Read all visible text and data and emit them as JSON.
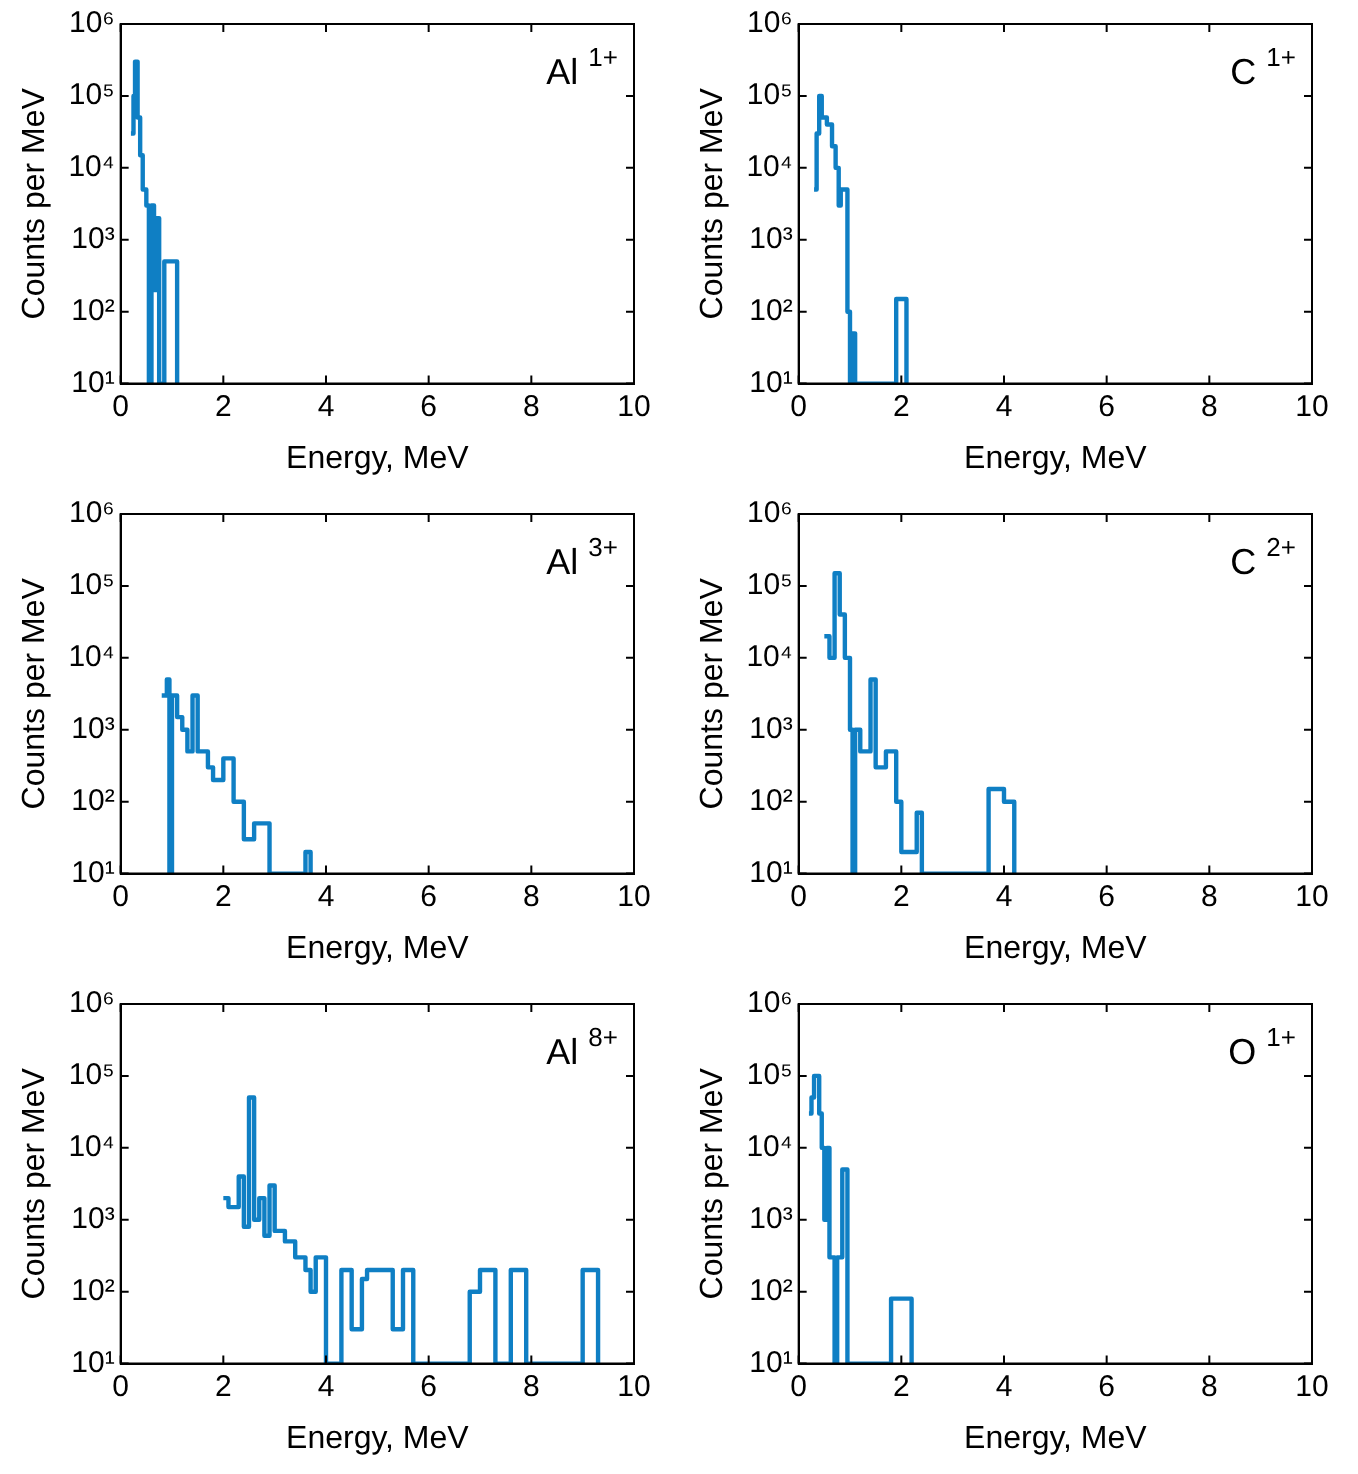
{
  "chart_data": [
    {
      "type": "step",
      "annotations": [
        "Al $^{1+}$"
      ],
      "xlabel": "Energy, MeV",
      "ylabel": "Counts per MeV",
      "log": "y",
      "grid": false,
      "legend": false,
      "xlim": [
        0,
        10
      ],
      "ylim": [
        10,
        1000000
      ],
      "xticks": [
        0,
        2,
        4,
        6,
        8,
        10
      ],
      "yticks": [
        {
          "value": 10,
          "label": "10¹"
        },
        {
          "value": 100,
          "label": "10²"
        },
        {
          "value": 1000,
          "label": "10³"
        },
        {
          "value": 10000,
          "label": "10⁴"
        },
        {
          "value": 100000,
          "label": "10⁵"
        },
        {
          "value": 1000000,
          "label": "10⁶"
        }
      ],
      "series": [
        {
          "color": "#0f7fc4",
          "x": [
            0.2,
            0.25,
            0.28,
            0.33,
            0.38,
            0.43,
            0.5,
            0.55,
            0.6,
            0.65,
            0.7,
            0.75,
            0.85,
            1.1
          ],
          "values": [
            30000,
            100000,
            300000,
            50000,
            15000,
            5000,
            3000,
            10,
            3000,
            200,
            2000,
            10,
            500,
            10
          ]
        }
      ]
    },
    {
      "type": "step",
      "annotations": [
        "C $^{1+}$"
      ],
      "xlabel": "Energy, MeV",
      "ylabel": "Counts per MeV",
      "log": "y",
      "grid": false,
      "legend": false,
      "xlim": [
        0,
        10
      ],
      "ylim": [
        10,
        1000000
      ],
      "xticks": [
        0,
        2,
        4,
        6,
        8,
        10
      ],
      "yticks": [
        {
          "value": 10,
          "label": "10¹"
        },
        {
          "value": 100,
          "label": "10²"
        },
        {
          "value": 1000,
          "label": "10³"
        },
        {
          "value": 10000,
          "label": "10⁴"
        },
        {
          "value": 100000,
          "label": "10⁵"
        },
        {
          "value": 1000000,
          "label": "10⁶"
        }
      ],
      "series": [
        {
          "color": "#0f7fc4",
          "x": [
            0.3,
            0.35,
            0.4,
            0.45,
            0.55,
            0.65,
            0.72,
            0.78,
            0.82,
            0.95,
            1.0,
            1.05,
            1.1,
            1.9,
            2.1
          ],
          "values": [
            5000,
            30000,
            100000,
            50000,
            40000,
            20000,
            10000,
            3000,
            5000,
            100,
            10,
            50,
            10,
            150,
            10
          ]
        }
      ]
    },
    {
      "type": "step",
      "annotations": [
        "Al $^{3+}$"
      ],
      "xlabel": "Energy, MeV",
      "ylabel": "Counts per MeV",
      "log": "y",
      "grid": false,
      "legend": false,
      "xlim": [
        0,
        10
      ],
      "ylim": [
        10,
        1000000
      ],
      "xticks": [
        0,
        2,
        4,
        6,
        8,
        10
      ],
      "yticks": [
        {
          "value": 10,
          "label": "10¹"
        },
        {
          "value": 100,
          "label": "10²"
        },
        {
          "value": 1000,
          "label": "10³"
        },
        {
          "value": 10000,
          "label": "10⁴"
        },
        {
          "value": 100000,
          "label": "10⁵"
        },
        {
          "value": 1000000,
          "label": "10⁶"
        }
      ],
      "series": [
        {
          "color": "#0f7fc4",
          "x": [
            0.8,
            0.9,
            0.95,
            1.0,
            1.1,
            1.2,
            1.3,
            1.4,
            1.5,
            1.7,
            1.8,
            2.0,
            2.2,
            2.4,
            2.6,
            2.9,
            3.6,
            3.7
          ],
          "values": [
            3000,
            5000,
            10,
            3000,
            1500,
            1000,
            500,
            3000,
            500,
            300,
            200,
            400,
            100,
            30,
            50,
            10,
            20,
            10
          ]
        }
      ]
    },
    {
      "type": "step",
      "annotations": [
        "C $^{2+}$"
      ],
      "xlabel": "Energy, MeV",
      "ylabel": "Counts per MeV",
      "log": "y",
      "grid": false,
      "legend": false,
      "xlim": [
        0,
        10
      ],
      "ylim": [
        10,
        1000000
      ],
      "xticks": [
        0,
        2,
        4,
        6,
        8,
        10
      ],
      "yticks": [
        {
          "value": 10,
          "label": "10¹"
        },
        {
          "value": 100,
          "label": "10²"
        },
        {
          "value": 1000,
          "label": "10³"
        },
        {
          "value": 10000,
          "label": "10⁴"
        },
        {
          "value": 100000,
          "label": "10⁵"
        },
        {
          "value": 1000000,
          "label": "10⁶"
        }
      ],
      "series": [
        {
          "color": "#0f7fc4",
          "x": [
            0.5,
            0.6,
            0.7,
            0.8,
            0.9,
            1.0,
            1.05,
            1.1,
            1.2,
            1.4,
            1.5,
            1.7,
            1.9,
            2.0,
            2.3,
            2.4,
            3.7,
            4.0,
            4.2
          ],
          "values": [
            20000,
            10000,
            150000,
            40000,
            10000,
            1000,
            10,
            1000,
            500,
            5000,
            300,
            500,
            100,
            20,
            70,
            10,
            150,
            100,
            10
          ]
        }
      ]
    },
    {
      "type": "step",
      "annotations": [
        "Al $^{8+}$"
      ],
      "xlabel": "Energy, MeV",
      "ylabel": "Counts per MeV",
      "log": "y",
      "grid": false,
      "legend": false,
      "xlim": [
        0,
        10
      ],
      "ylim": [
        10,
        1000000
      ],
      "xticks": [
        0,
        2,
        4,
        6,
        8,
        10
      ],
      "yticks": [
        {
          "value": 10,
          "label": "10¹"
        },
        {
          "value": 100,
          "label": "10²"
        },
        {
          "value": 1000,
          "label": "10³"
        },
        {
          "value": 10000,
          "label": "10⁴"
        },
        {
          "value": 100000,
          "label": "10⁵"
        },
        {
          "value": 1000000,
          "label": "10⁶"
        }
      ],
      "series": [
        {
          "color": "#0f7fc4",
          "x": [
            2.0,
            2.1,
            2.3,
            2.4,
            2.5,
            2.6,
            2.7,
            2.8,
            2.9,
            3.0,
            3.2,
            3.4,
            3.6,
            3.7,
            3.8,
            4.0,
            4.3,
            4.5,
            4.7,
            4.8,
            5.0,
            5.3,
            5.5,
            5.7,
            6.0,
            6.8,
            7.0,
            7.3,
            7.6,
            7.9,
            9.0,
            9.3
          ],
          "values": [
            2000,
            1500,
            4000,
            800,
            50000,
            1000,
            2000,
            600,
            3000,
            700,
            500,
            300,
            200,
            100,
            300,
            10,
            200,
            30,
            150,
            200,
            200,
            30,
            200,
            10,
            10,
            100,
            200,
            10,
            200,
            10,
            200,
            10
          ]
        }
      ]
    },
    {
      "type": "step",
      "annotations": [
        "O $^{1+}$"
      ],
      "xlabel": "Energy, MeV",
      "ylabel": "Counts per MeV",
      "log": "y",
      "grid": false,
      "legend": false,
      "xlim": [
        0,
        10
      ],
      "ylim": [
        10,
        1000000
      ],
      "xticks": [
        0,
        2,
        4,
        6,
        8,
        10
      ],
      "yticks": [
        {
          "value": 10,
          "label": "10¹"
        },
        {
          "value": 100,
          "label": "10²"
        },
        {
          "value": 1000,
          "label": "10³"
        },
        {
          "value": 10000,
          "label": "10⁴"
        },
        {
          "value": 100000,
          "label": "10⁵"
        },
        {
          "value": 1000000,
          "label": "10⁶"
        }
      ],
      "series": [
        {
          "color": "#0f7fc4",
          "x": [
            0.2,
            0.25,
            0.3,
            0.4,
            0.45,
            0.5,
            0.55,
            0.6,
            0.7,
            0.75,
            0.85,
            0.95,
            1.8,
            2.2
          ],
          "values": [
            30000,
            50000,
            100000,
            30000,
            10000,
            1000,
            10000,
            300,
            10,
            300,
            5000,
            10,
            80,
            10
          ]
        }
      ]
    }
  ]
}
